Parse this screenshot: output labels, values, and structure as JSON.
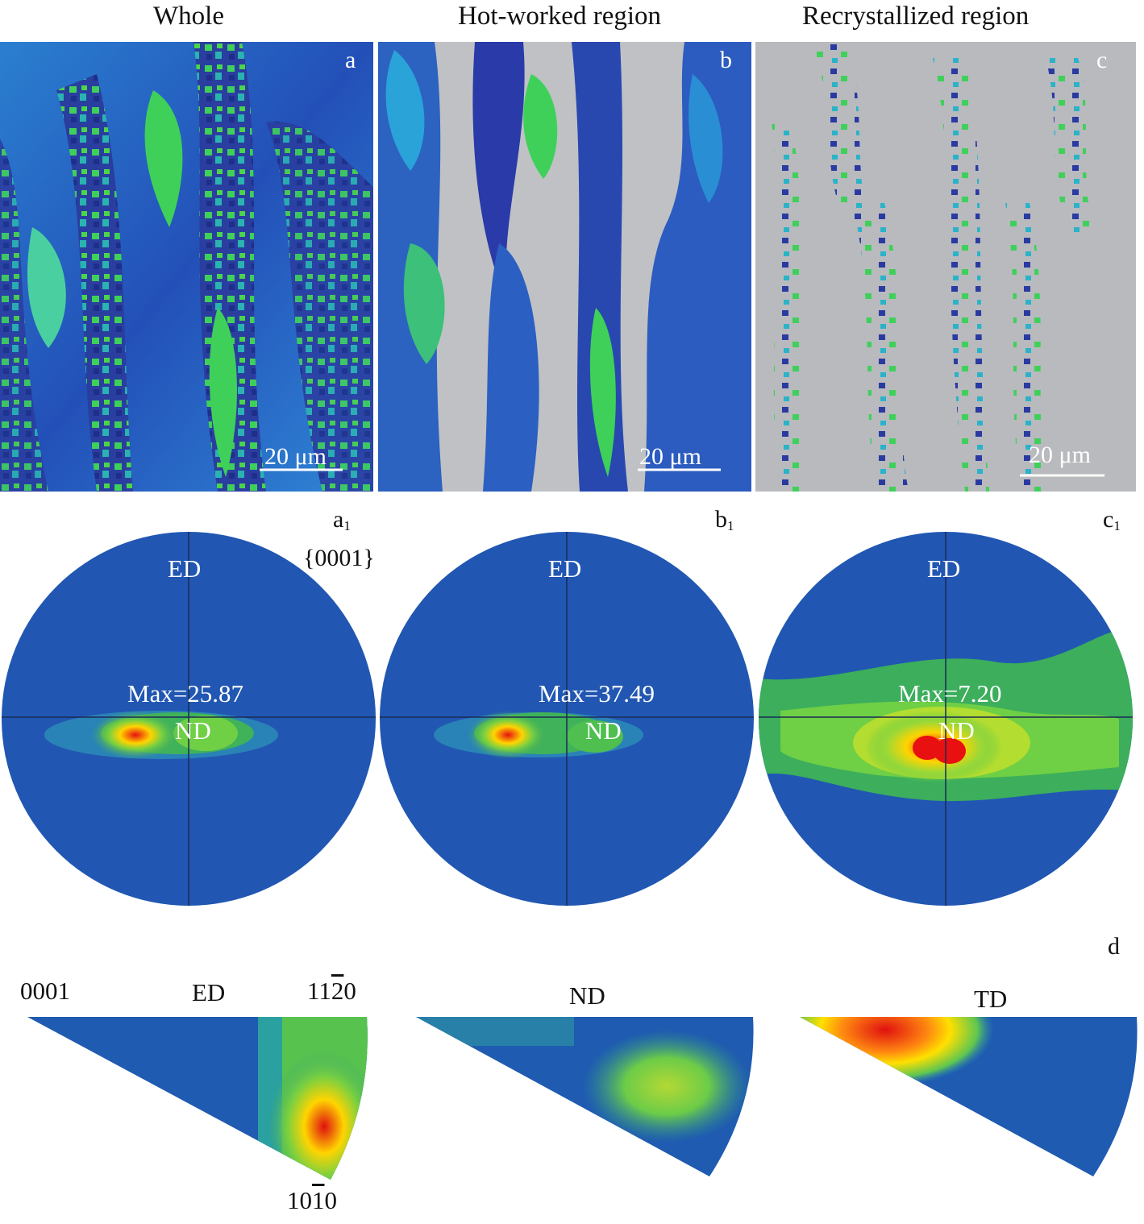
{
  "columns": [
    {
      "title": "Whole",
      "map_letter": "a",
      "scale_bar": "20 μm",
      "pf_letter": "a",
      "pf_sub": "1",
      "pf_plane": "{0001}",
      "pf_top": "ED",
      "pf_max": "Max=25.87",
      "pf_center": "ND"
    },
    {
      "title": "Hot-worked region",
      "map_letter": "b",
      "scale_bar": "20 μm",
      "pf_letter": "b",
      "pf_sub": "1",
      "pf_top": "ED",
      "pf_max": "Max=37.49",
      "pf_center": "ND"
    },
    {
      "title": "Recrystallized region",
      "map_letter": "c",
      "scale_bar": "20 μm",
      "pf_letter": "c",
      "pf_sub": "1",
      "pf_top": "ED",
      "pf_max": "Max=7.20",
      "pf_center": "ND"
    }
  ],
  "ipf": {
    "panel_letter": "d",
    "corner_0001": "0001",
    "corner_11_pre": "11",
    "corner_11_bar": "2",
    "corner_11_post": "0",
    "corner_10_pre": "10",
    "corner_10_bar": "1",
    "corner_10_post": "0",
    "triangles": [
      {
        "label": "ED"
      },
      {
        "label": "ND"
      },
      {
        "label": "TD"
      }
    ]
  },
  "colors": {
    "blue_bg": "#1f5bb0",
    "green": "#3fc05a",
    "yellow": "#f0e400",
    "red": "#e01010",
    "gray_bg": "#b7b9bd"
  }
}
